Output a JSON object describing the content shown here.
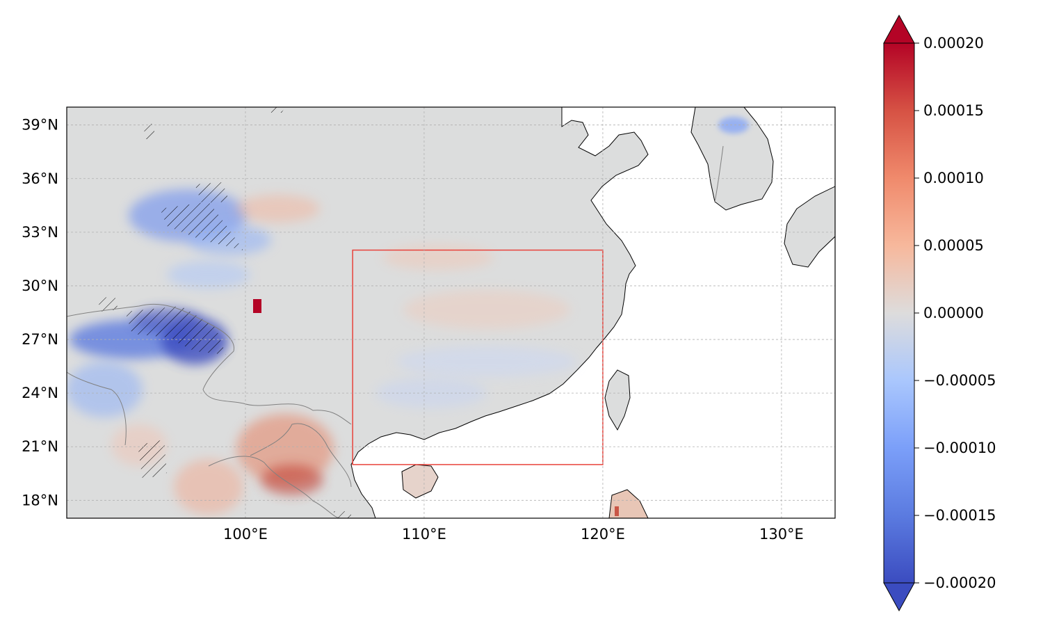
{
  "map": {
    "projection": "PlateCarree",
    "lon_range": [
      90,
      133
    ],
    "lat_range": [
      17,
      40
    ],
    "gridlines": true,
    "lon_ticks": [
      {
        "value": 100,
        "label": "100°E"
      },
      {
        "value": 110,
        "label": "110°E"
      },
      {
        "value": 120,
        "label": "120°E"
      },
      {
        "value": 130,
        "label": "130°E"
      }
    ],
    "lat_ticks": [
      {
        "value": 18,
        "label": "18°N"
      },
      {
        "value": 21,
        "label": "21°N"
      },
      {
        "value": 24,
        "label": "24°N"
      },
      {
        "value": 27,
        "label": "27°N"
      },
      {
        "value": 30,
        "label": "30°N"
      },
      {
        "value": 33,
        "label": "33°N"
      },
      {
        "value": 36,
        "label": "36°N"
      },
      {
        "value": 39,
        "label": "39°N"
      }
    ],
    "region_box": {
      "lon": [
        106,
        120
      ],
      "lat": [
        20,
        32
      ],
      "color": "#e8423b"
    },
    "colors": {
      "land": "#dcdddd",
      "ocean": "#ffffff",
      "coast": "#000000",
      "border": "#808080",
      "grid": "#b0b0b0"
    }
  },
  "colorbar": {
    "colormap": "coolwarm",
    "range": [
      -0.0002,
      0.0002
    ],
    "extend": "both",
    "ticks": [
      {
        "value": 0.0002,
        "label": "0.00020"
      },
      {
        "value": 0.00015,
        "label": "0.00015"
      },
      {
        "value": 0.0001,
        "label": "0.00010"
      },
      {
        "value": 5e-05,
        "label": "0.00005"
      },
      {
        "value": 0,
        "label": "0.00000"
      },
      {
        "value": -5e-05,
        "label": "−0.00005"
      },
      {
        "value": -0.0001,
        "label": "−0.00010"
      },
      {
        "value": -0.00015,
        "label": "−0.00015"
      },
      {
        "value": -0.0002,
        "label": "−0.00020"
      }
    ]
  }
}
